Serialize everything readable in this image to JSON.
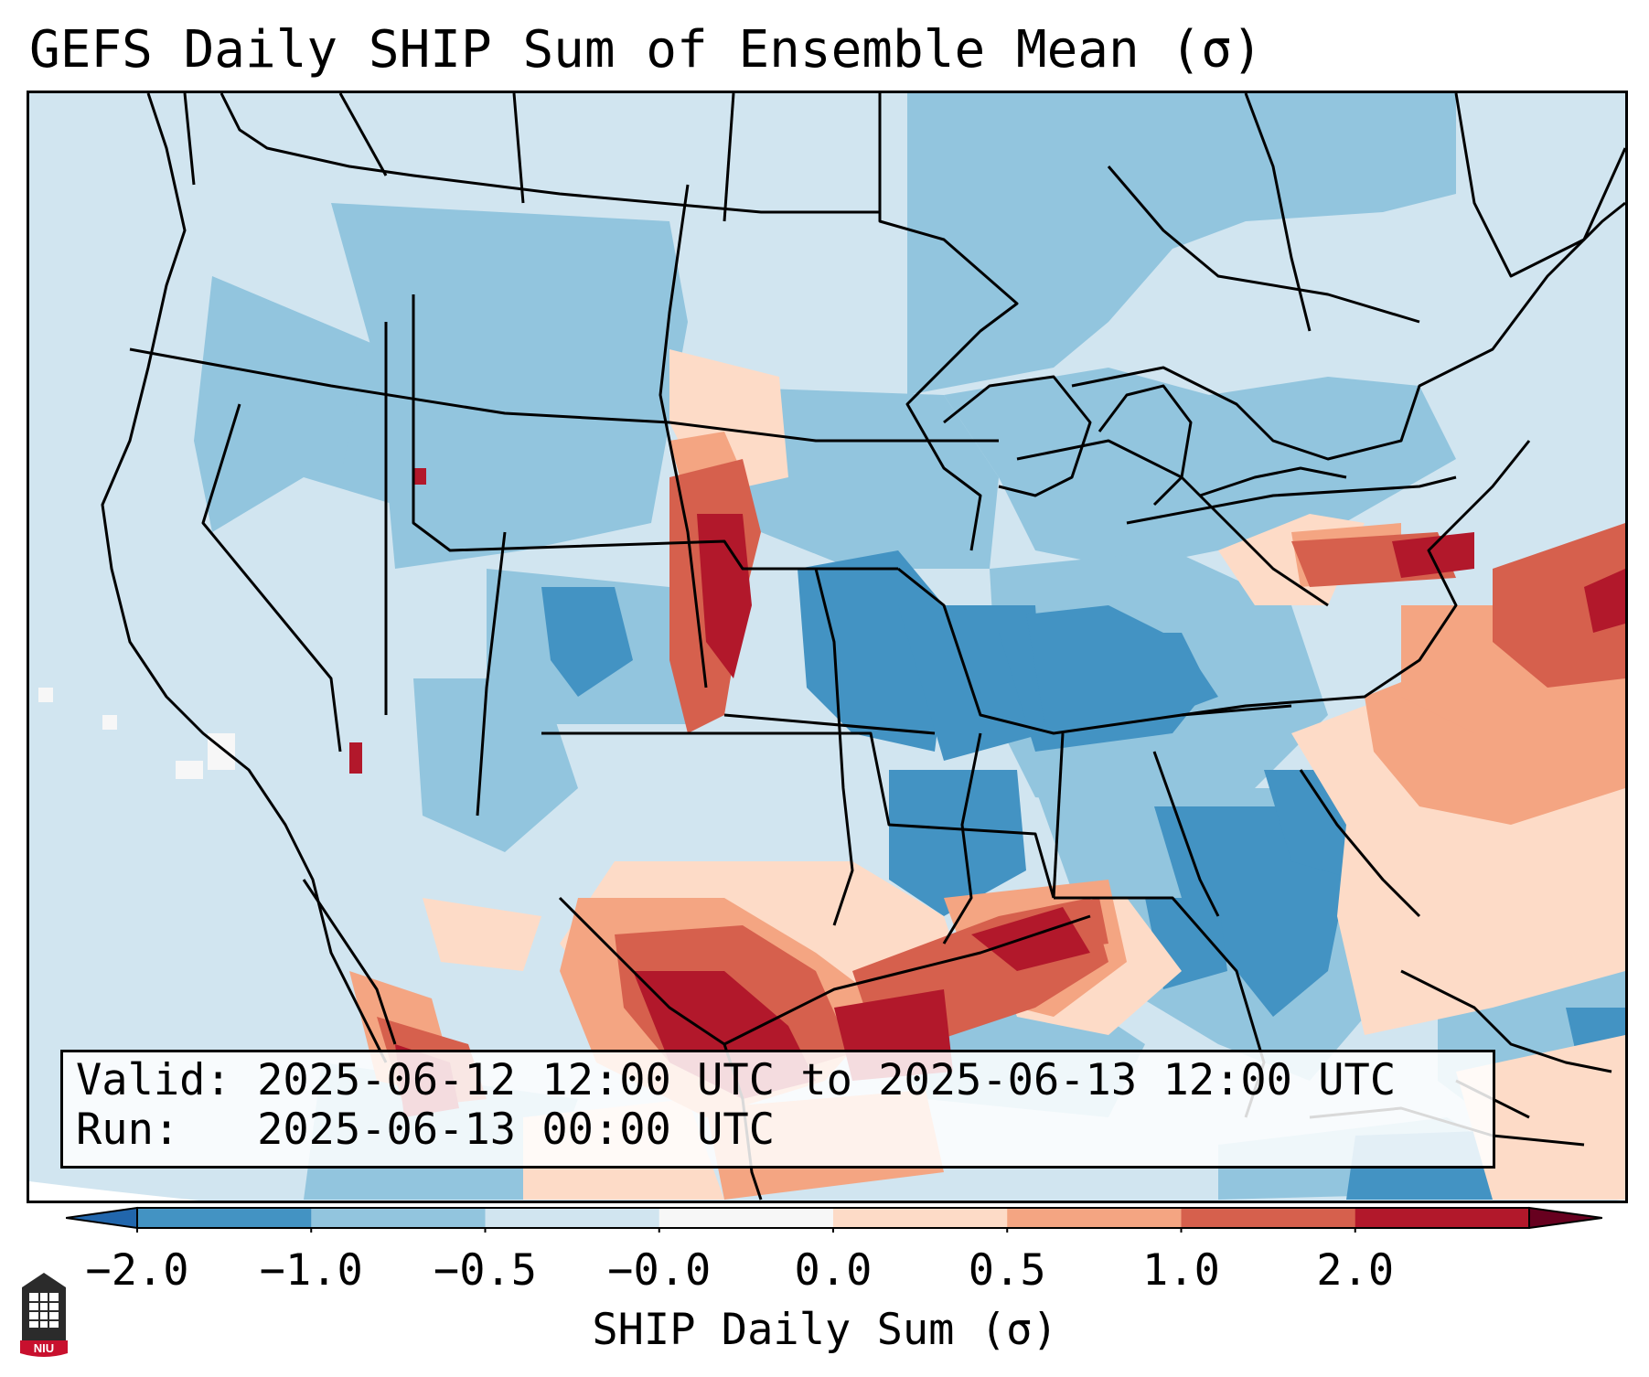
{
  "title": "GEFS Daily SHIP Sum of Ensemble Mean (σ)",
  "info_box": {
    "valid_line": "Valid: 2025-06-12 12:00 UTC to 2025-06-13 12:00 UTC",
    "run_line": "Run:   2025-06-13 00:00 UTC"
  },
  "colorbar": {
    "label": "SHIP Daily Sum (σ)",
    "ticks": [
      "−2.0",
      "−1.0",
      "−0.5",
      "−0.0",
      "0.0",
      "0.5",
      "1.0",
      "2.0"
    ],
    "bin_colors": [
      "#4393c3",
      "#92c5de",
      "#d1e5f0",
      "#f7f7f7",
      "#fddbc7",
      "#f4a582",
      "#d6604d",
      "#b2182b"
    ],
    "under_color": "#2166ac",
    "over_color": "#67001f",
    "extend": "both"
  },
  "map": {
    "projection": "Lambert Conformal, CONUS",
    "background_color": "#d1e5f0",
    "enhanced_areas": [
      "western Nebraska / eastern Colorado",
      "south Texas and Texas Gulf coast",
      "Louisiana coast",
      "southern Pennsylvania / New Jersey",
      "western Atlantic offshore",
      "northwestern Mexico"
    ]
  },
  "logo": {
    "text": "NIU"
  }
}
